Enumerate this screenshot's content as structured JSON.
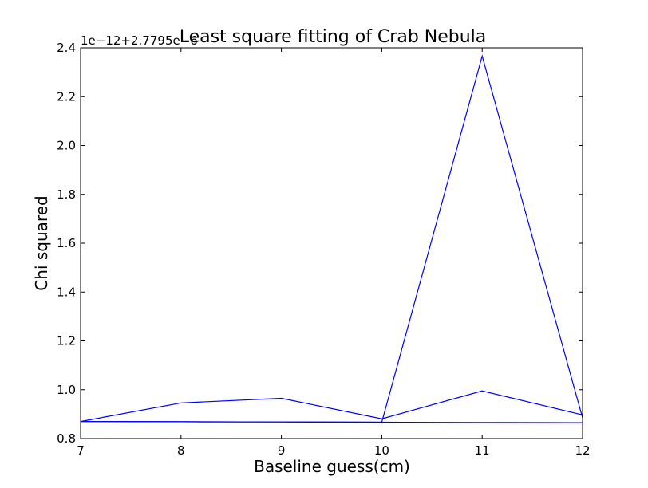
{
  "chart_data": {
    "type": "line",
    "title": "Least square fitting of Crab Nebula",
    "xlabel": "Baseline guess(cm)",
    "ylabel": "Chi squared",
    "y_offset_text": "1e−12+2.7795e−6",
    "xlim": [
      7,
      12
    ],
    "ylim": [
      0.8,
      2.4
    ],
    "x_ticks": [
      7,
      8,
      9,
      10,
      11,
      12
    ],
    "x_tick_labels": [
      "7",
      "8",
      "9",
      "10",
      "11",
      "12"
    ],
    "y_ticks": [
      0.8,
      1.0,
      1.2,
      1.4,
      1.6,
      1.8,
      2.0,
      2.2,
      2.4
    ],
    "y_tick_labels": [
      "0.8",
      "1.0",
      "1.2",
      "1.4",
      "1.6",
      "1.8",
      "2.0",
      "2.2",
      "2.4"
    ],
    "grid": false,
    "line_color": "#0000ff",
    "series": [
      {
        "x": [
          7,
          8,
          9,
          10,
          11,
          12
        ],
        "values": [
          0.87,
          0.869,
          0.868,
          0.867,
          0.866,
          0.865
        ]
      },
      {
        "x": [
          7,
          8,
          9,
          10,
          11,
          12
        ],
        "values": [
          0.87,
          0.946,
          0.965,
          0.881,
          0.995,
          0.897
        ]
      },
      {
        "x": [
          7,
          8,
          9,
          10,
          11,
          12
        ],
        "values": [
          0.87,
          0.869,
          0.868,
          0.867,
          2.366,
          0.885
        ]
      }
    ]
  }
}
